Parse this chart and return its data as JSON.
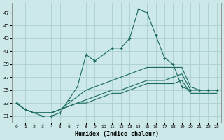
{
  "xlabel": "Humidex (Indice chaleur)",
  "bg_color": "#cce8e8",
  "grid_color": "#aacfcf",
  "line_color": "#1a6b5a",
  "xlim": [
    -0.5,
    23.5
  ],
  "ylim": [
    30.0,
    48.5
  ],
  "xticks": [
    0,
    1,
    2,
    3,
    4,
    5,
    6,
    7,
    8,
    9,
    10,
    11,
    12,
    13,
    14,
    15,
    16,
    17,
    18,
    19,
    20,
    21,
    22,
    23
  ],
  "yticks": [
    31,
    33,
    35,
    37,
    39,
    41,
    43,
    45,
    47
  ],
  "line_marked_x": [
    0,
    1,
    2,
    3,
    4,
    5,
    6,
    7,
    8,
    9,
    10,
    11,
    12,
    13,
    14,
    15,
    16,
    17,
    18,
    19,
    20,
    21,
    22,
    23
  ],
  "line_marked_y": [
    33.0,
    32.0,
    31.5,
    31.0,
    31.0,
    31.5,
    33.5,
    35.5,
    40.5,
    39.5,
    40.5,
    41.5,
    41.5,
    43.0,
    47.5,
    47.0,
    43.5,
    40.0,
    39.0,
    35.5,
    35.0,
    35.0,
    35.0,
    35.0
  ],
  "line2_x": [
    0,
    1,
    2,
    3,
    4,
    5,
    6,
    7,
    8,
    9,
    10,
    11,
    12,
    13,
    14,
    15,
    16,
    17,
    18,
    19,
    20,
    21,
    22,
    23
  ],
  "line2_y": [
    33.0,
    32.0,
    31.5,
    31.5,
    31.5,
    32.0,
    33.0,
    34.0,
    35.0,
    35.5,
    36.0,
    36.5,
    37.0,
    37.5,
    38.0,
    38.5,
    38.5,
    38.5,
    38.5,
    38.5,
    35.5,
    35.0,
    35.0,
    35.0
  ],
  "line3_x": [
    0,
    1,
    2,
    3,
    4,
    5,
    6,
    7,
    8,
    9,
    10,
    11,
    12,
    13,
    14,
    15,
    16,
    17,
    18,
    19,
    20,
    21,
    22,
    23
  ],
  "line3_y": [
    33.0,
    32.0,
    31.5,
    31.5,
    31.5,
    32.0,
    32.5,
    33.0,
    33.5,
    34.0,
    34.5,
    35.0,
    35.0,
    35.5,
    36.0,
    36.5,
    36.5,
    36.5,
    37.0,
    37.5,
    35.0,
    35.0,
    35.0,
    35.0
  ],
  "line4_x": [
    0,
    1,
    2,
    3,
    4,
    5,
    6,
    7,
    8,
    9,
    10,
    11,
    12,
    13,
    14,
    15,
    16,
    17,
    18,
    19,
    20,
    21,
    22,
    23
  ],
  "line4_y": [
    33.0,
    32.0,
    31.5,
    31.5,
    31.5,
    32.0,
    32.5,
    33.0,
    33.0,
    33.5,
    34.0,
    34.5,
    34.5,
    35.0,
    35.5,
    36.0,
    36.0,
    36.0,
    36.0,
    36.5,
    34.5,
    34.5,
    34.5,
    34.5
  ]
}
